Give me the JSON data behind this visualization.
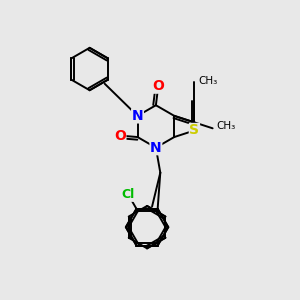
{
  "background_color": "#e8e8e8",
  "atom_colors": {
    "N": "#0000ff",
    "O": "#ff0000",
    "S": "#cccc00",
    "Cl": "#00bb00",
    "C": "#000000"
  },
  "bond_color": "#000000",
  "figsize": [
    3.0,
    3.0
  ],
  "dpi": 100
}
